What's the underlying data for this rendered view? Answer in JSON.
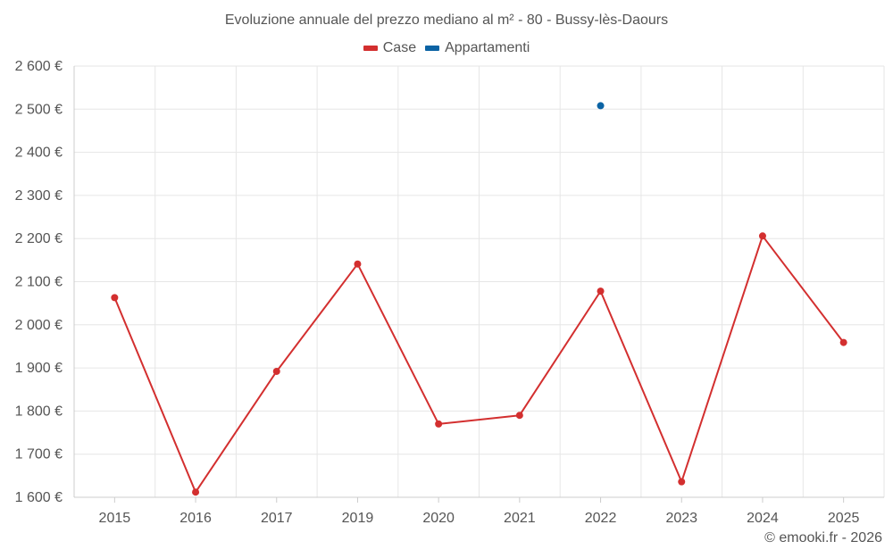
{
  "chart_data": {
    "type": "line",
    "title": "Evoluzione annuale del prezzo mediano al m² - 80 - Bussy-lès-Daours",
    "categories": [
      "2015",
      "2016",
      "2017",
      "2019",
      "2020",
      "2021",
      "2022",
      "2023",
      "2024",
      "2025"
    ],
    "series": [
      {
        "name": "Case",
        "color": "#d32f2f",
        "values": [
          2063,
          1612,
          1892,
          2141,
          1770,
          1790,
          2078,
          1636,
          2206,
          1959
        ]
      },
      {
        "name": "Appartamenti",
        "color": "#0b63a4",
        "values": [
          null,
          null,
          null,
          null,
          null,
          null,
          2508,
          null,
          null,
          null
        ]
      }
    ],
    "y_ticks": [
      1600,
      1700,
      1800,
      1900,
      2000,
      2100,
      2200,
      2300,
      2400,
      2500,
      2600
    ],
    "y_tick_labels": [
      "1 600 €",
      "1 700 €",
      "1 800 €",
      "1 900 €",
      "2 000 €",
      "2 100 €",
      "2 200 €",
      "2 300 €",
      "2 400 €",
      "2 500 €",
      "2 600 €"
    ],
    "ylim": [
      1600,
      2600
    ],
    "grid": true,
    "legend_position": "top-center",
    "xlabel": "",
    "ylabel": ""
  },
  "credit": "© emooki.fr - 2026"
}
